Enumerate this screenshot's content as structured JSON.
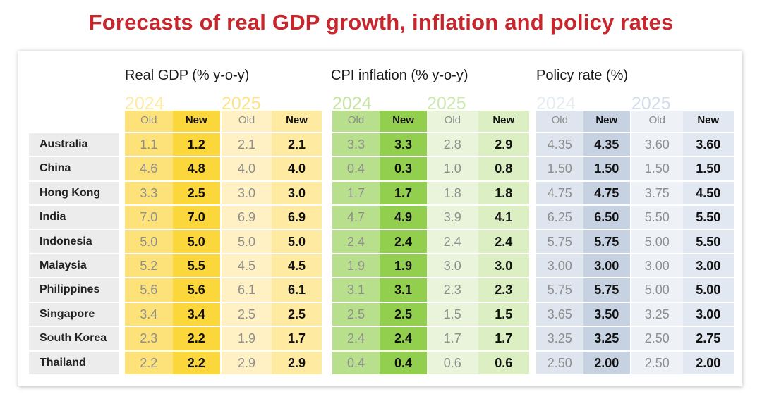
{
  "title": "Forecasts of real GDP growth, inflation and policy rates",
  "groups": [
    {
      "label": "Real GDP (% y-o-y)"
    },
    {
      "label": "CPI inflation (% y-o-y)"
    },
    {
      "label": "Policy rate (%)"
    }
  ],
  "years": [
    "2024",
    "2025"
  ],
  "sub_headers": {
    "old": "Old",
    "new": "New"
  },
  "colors": {
    "title": "#c8262d",
    "gdp_2024": "#fde27a",
    "gdp_2024_new": "#fcd73c",
    "gdp_2025": "#fff1c4",
    "gdp_2025_new": "#feeaa0",
    "cpi_2024": "#b8e08c",
    "cpi_2024_new": "#93cf4e",
    "cpi_2025": "#e9f4da",
    "cpi_2025_new": "#dcefc3",
    "pol_2024": "#dfe5ef",
    "pol_2024_new": "#c6d1e2",
    "pol_2025": "#eef1f6",
    "pol_2025_new": "#e2e8f1",
    "country_bg": "#ececec"
  },
  "rows": [
    {
      "country": "Australia",
      "gdp24": [
        "1.1",
        "1.2"
      ],
      "gdp25": [
        "2.1",
        "2.1"
      ],
      "cpi24": [
        "3.3",
        "3.3"
      ],
      "cpi25": [
        "2.8",
        "2.9"
      ],
      "pol24": [
        "4.35",
        "4.35"
      ],
      "pol25": [
        "3.60",
        "3.60"
      ]
    },
    {
      "country": "China",
      "gdp24": [
        "4.6",
        "4.8"
      ],
      "gdp25": [
        "4.0",
        "4.0"
      ],
      "cpi24": [
        "0.4",
        "0.3"
      ],
      "cpi25": [
        "1.0",
        "0.8"
      ],
      "pol24": [
        "1.50",
        "1.50"
      ],
      "pol25": [
        "1.50",
        "1.50"
      ]
    },
    {
      "country": "Hong Kong",
      "gdp24": [
        "3.3",
        "2.5"
      ],
      "gdp25": [
        "3.0",
        "3.0"
      ],
      "cpi24": [
        "1.7",
        "1.7"
      ],
      "cpi25": [
        "1.8",
        "1.8"
      ],
      "pol24": [
        "4.75",
        "4.75"
      ],
      "pol25": [
        "3.75",
        "4.50"
      ]
    },
    {
      "country": "India",
      "gdp24": [
        "7.0",
        "7.0"
      ],
      "gdp25": [
        "6.9",
        "6.9"
      ],
      "cpi24": [
        "4.7",
        "4.9"
      ],
      "cpi25": [
        "3.9",
        "4.1"
      ],
      "pol24": [
        "6.25",
        "6.50"
      ],
      "pol25": [
        "5.50",
        "5.50"
      ]
    },
    {
      "country": "Indonesia",
      "gdp24": [
        "5.0",
        "5.0"
      ],
      "gdp25": [
        "5.0",
        "5.0"
      ],
      "cpi24": [
        "2.4",
        "2.4"
      ],
      "cpi25": [
        "2.4",
        "2.4"
      ],
      "pol24": [
        "5.75",
        "5.75"
      ],
      "pol25": [
        "5.00",
        "5.50"
      ]
    },
    {
      "country": "Malaysia",
      "gdp24": [
        "5.2",
        "5.5"
      ],
      "gdp25": [
        "4.5",
        "4.5"
      ],
      "cpi24": [
        "1.9",
        "1.9"
      ],
      "cpi25": [
        "3.0",
        "3.0"
      ],
      "pol24": [
        "3.00",
        "3.00"
      ],
      "pol25": [
        "3.00",
        "3.00"
      ]
    },
    {
      "country": "Philippines",
      "gdp24": [
        "5.6",
        "5.6"
      ],
      "gdp25": [
        "6.1",
        "6.1"
      ],
      "cpi24": [
        "3.1",
        "3.1"
      ],
      "cpi25": [
        "2.3",
        "2.3"
      ],
      "pol24": [
        "5.75",
        "5.75"
      ],
      "pol25": [
        "5.00",
        "5.00"
      ]
    },
    {
      "country": "Singapore",
      "gdp24": [
        "3.4",
        "3.4"
      ],
      "gdp25": [
        "2.5",
        "2.5"
      ],
      "cpi24": [
        "2.5",
        "2.5"
      ],
      "cpi25": [
        "1.5",
        "1.5"
      ],
      "pol24": [
        "3.65",
        "3.50"
      ],
      "pol25": [
        "3.25",
        "3.00"
      ]
    },
    {
      "country": "South Korea",
      "gdp24": [
        "2.3",
        "2.2"
      ],
      "gdp25": [
        "1.9",
        "1.7"
      ],
      "cpi24": [
        "2.4",
        "2.4"
      ],
      "cpi25": [
        "1.7",
        "1.7"
      ],
      "pol24": [
        "3.25",
        "3.25"
      ],
      "pol25": [
        "2.50",
        "2.75"
      ]
    },
    {
      "country": "Thailand",
      "gdp24": [
        "2.2",
        "2.2"
      ],
      "gdp25": [
        "2.9",
        "2.9"
      ],
      "cpi24": [
        "0.4",
        "0.4"
      ],
      "cpi25": [
        "0.6",
        "0.6"
      ],
      "pol24": [
        "2.50",
        "2.00"
      ],
      "pol25": [
        "2.50",
        "2.00"
      ]
    }
  ]
}
